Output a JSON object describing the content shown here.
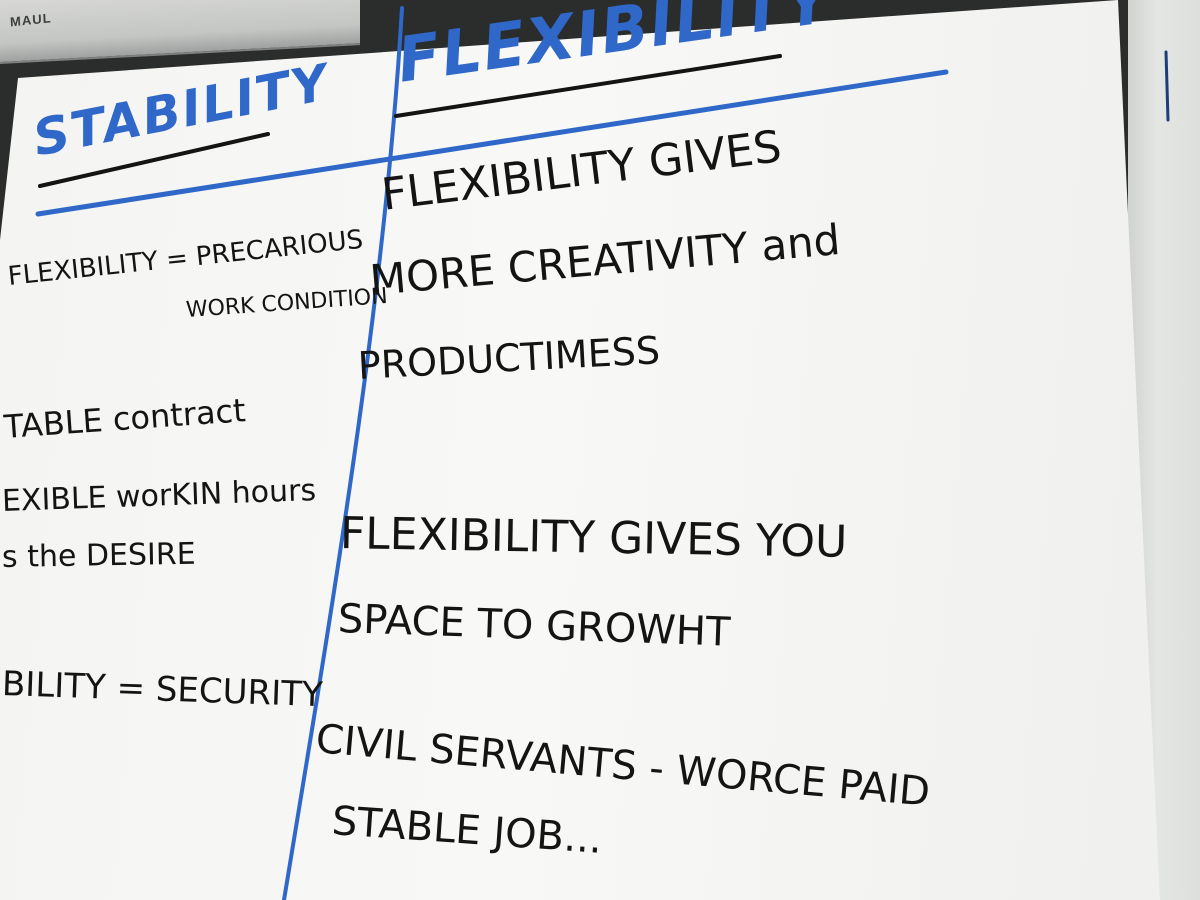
{
  "clip": {
    "brand": "MAUL"
  },
  "headers": {
    "left": "STABILITY",
    "right": "FLEXIBILITY"
  },
  "left_column": {
    "line1a": "FLEXIBILITY = PRECARIOUS",
    "line1b": "WORK CONDITION",
    "line2": "TABLE contract",
    "line3a": "EXIBLE worKIN hours",
    "line3b": "s the DESIRE",
    "line4": "BILITY = SECURITY"
  },
  "right_column": {
    "p1a": "FLEXIBILITY GIVES",
    "p1b": "MORE CREATIVITY and",
    "p1c": "PRODUCTIMESS",
    "p2a": "FLEXIBILITY GIVES YOU",
    "p2b": "SPACE TO GROWHT",
    "p3a": "CIVIL SERVANTS - WORCE PAID",
    "p3b": "STABLE JOB..."
  },
  "colors": {
    "marker_blue": "#2f68c8",
    "marker_black": "#141414",
    "paper": "#f6f6f4"
  }
}
